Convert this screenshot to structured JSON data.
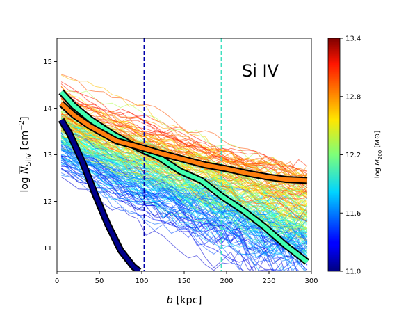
{
  "chart_data": {
    "type": "line",
    "title": "Si IV",
    "xlabel_var": "b",
    "xlabel_unit": "[kpc]",
    "ylabel_prefix": "log",
    "ylabel_var": "N",
    "ylabel_sub": "SiIV",
    "ylabel_unit_open": "[cm",
    "ylabel_unit_exp": "−2",
    "ylabel_unit_close": "]",
    "xlim": [
      0,
      300
    ],
    "ylim": [
      10.5,
      15.5
    ],
    "xticks": [
      0,
      50,
      100,
      150,
      200,
      250,
      300
    ],
    "yticks": [
      11,
      12,
      13,
      14,
      15
    ],
    "colorbar": {
      "label_prefix": "log",
      "label_var": "M",
      "label_sub": "200",
      "label_unit": "[M⊙]",
      "range": [
        11.0,
        13.4
      ],
      "ticks": [
        "11.0",
        "11.6",
        "12.2",
        "12.8",
        "13.4"
      ],
      "colormap": "jet"
    },
    "vlines": [
      {
        "name": "virial-radius-low-mass",
        "x": 103,
        "color": "#0000aa",
        "style": "dashed"
      },
      {
        "name": "virial-radius-mid-mass",
        "x": 194,
        "color": "#40e0c0",
        "style": "dashed"
      }
    ],
    "median_series": [
      {
        "name": "low-mass-median",
        "fill": "#00008b",
        "x": [
          5,
          15,
          30,
          45,
          60,
          75,
          90,
          97
        ],
        "y": [
          13.75,
          13.45,
          12.85,
          12.15,
          11.5,
          10.95,
          10.6,
          10.5
        ]
      },
      {
        "name": "mid-mass-median",
        "fill": "#40ffb0",
        "x": [
          5,
          20,
          40,
          65,
          95,
          120,
          145,
          170,
          195,
          220,
          245,
          270,
          295
        ],
        "y": [
          14.35,
          14.05,
          13.75,
          13.45,
          13.15,
          12.95,
          12.65,
          12.45,
          12.1,
          11.8,
          11.45,
          11.05,
          10.7
        ]
      },
      {
        "name": "high-mass-median",
        "fill": "#ff7f0e",
        "x": [
          5,
          20,
          40,
          70,
          100,
          125,
          150,
          175,
          200,
          225,
          250,
          270,
          295
        ],
        "y": [
          14.1,
          13.85,
          13.6,
          13.3,
          13.15,
          13.02,
          12.9,
          12.78,
          12.7,
          12.6,
          12.52,
          12.47,
          12.45
        ]
      }
    ],
    "individual_profiles": "~200 individual halo column-density profiles, each coloured by halo mass (log M200 from 11.0 to 13.4) on the jet colormap"
  }
}
